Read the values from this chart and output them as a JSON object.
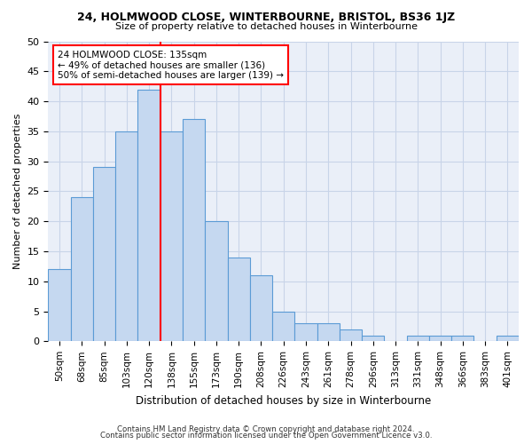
{
  "title1": "24, HOLMWOOD CLOSE, WINTERBOURNE, BRISTOL, BS36 1JZ",
  "title2": "Size of property relative to detached houses in Winterbourne",
  "xlabel": "Distribution of detached houses by size in Winterbourne",
  "ylabel": "Number of detached properties",
  "footer1": "Contains HM Land Registry data © Crown copyright and database right 2024.",
  "footer2": "Contains public sector information licensed under the Open Government Licence v3.0.",
  "bin_labels": [
    "50sqm",
    "68sqm",
    "85sqm",
    "103sqm",
    "120sqm",
    "138sqm",
    "155sqm",
    "173sqm",
    "190sqm",
    "208sqm",
    "226sqm",
    "243sqm",
    "261sqm",
    "278sqm",
    "296sqm",
    "313sqm",
    "331sqm",
    "348sqm",
    "366sqm",
    "383sqm",
    "401sqm"
  ],
  "bar_values": [
    12,
    24,
    29,
    35,
    42,
    35,
    37,
    20,
    14,
    11,
    5,
    3,
    3,
    2,
    1,
    0,
    1,
    1,
    1,
    0,
    1
  ],
  "bar_color": "#c5d8f0",
  "bar_edgecolor": "#5b9bd5",
  "redline_index": 5,
  "annotation_line1": "24 HOLMWOOD CLOSE: 135sqm",
  "annotation_line2": "← 49% of detached houses are smaller (136)",
  "annotation_line3": "50% of semi-detached houses are larger (139) →",
  "annotation_box_edgecolor": "red",
  "ylim": [
    0,
    50
  ],
  "yticks": [
    0,
    5,
    10,
    15,
    20,
    25,
    30,
    35,
    40,
    45,
    50
  ],
  "grid_color": "#c8d4e8",
  "bg_color": "#eaeff8"
}
